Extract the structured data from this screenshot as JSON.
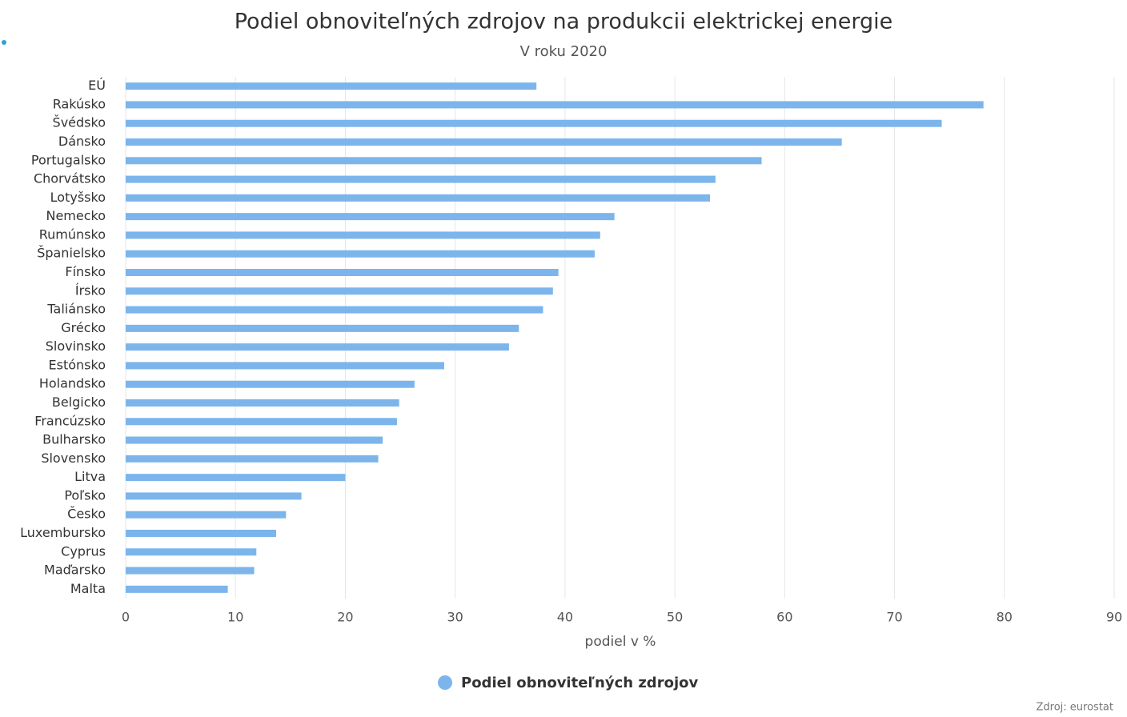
{
  "chart_data": {
    "type": "bar",
    "orientation": "horizontal",
    "title": "Podiel obnoviteľných zdrojov na produkcii elektrickej energie",
    "subtitle": "V roku 2020",
    "x_label": "podiel v %",
    "source": "Zdroj: eurostat",
    "categories": [
      "EÚ",
      "Rakúsko",
      "Švédsko",
      "Dánsko",
      "Portugalsko",
      "Chorvátsko",
      "Lotyšsko",
      "Nemecko",
      "Rumúnsko",
      "Španielsko",
      "Fínsko",
      "Írsko",
      "Taliánsko",
      "Grécko",
      "Slovinsko",
      "Estónsko",
      "Holandsko",
      "Belgicko",
      "Francúzsko",
      "Bulharsko",
      "Slovensko",
      "Litva",
      "Poľsko",
      "Česko",
      "Luxembursko",
      "Cyprus",
      "Maďarsko",
      "Malta"
    ],
    "series": [
      {
        "name": "Podiel obnoviteľných zdrojov",
        "color": "#7cb5ec",
        "values": [
          37.4,
          78.1,
          74.3,
          65.2,
          57.9,
          53.7,
          53.2,
          44.5,
          43.2,
          42.7,
          39.4,
          38.9,
          38.0,
          35.8,
          34.9,
          29.0,
          26.3,
          24.9,
          24.7,
          23.4,
          23.0,
          20.0,
          16.0,
          14.6,
          13.7,
          11.9,
          11.7,
          9.3
        ]
      }
    ],
    "xlim": [
      0,
      90
    ],
    "xticks": [
      0,
      10,
      20,
      30,
      40,
      50,
      60,
      70,
      80,
      90
    ],
    "grid": true,
    "legend": "bottom"
  }
}
